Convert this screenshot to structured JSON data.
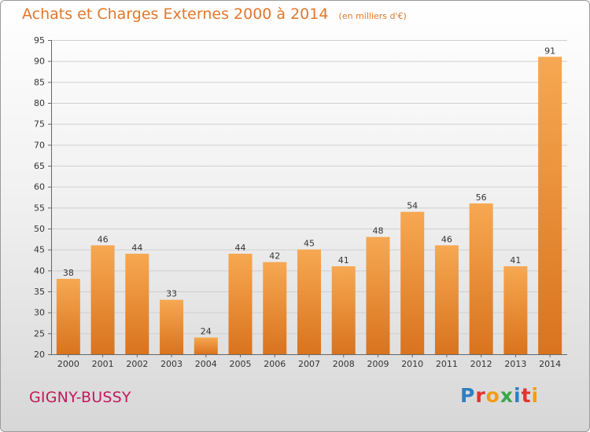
{
  "title": "Achats et Charges Externes 2000 à 2014",
  "unit_note": "(en milliers d'€)",
  "town": "GIGNY-BUSSY",
  "logo": "Proxiti",
  "colors": {
    "title": "#e2772a",
    "town": "#c2185b",
    "bar_light": "#f7a852",
    "bar_dark": "#d9731e",
    "logo_letters": [
      "#2f7fc1",
      "#e0342e",
      "#f39c12",
      "#3aa64a",
      "#2f7fc1",
      "#e0342e",
      "#f39c12"
    ]
  },
  "chart_data": {
    "type": "bar",
    "title": "Achats et Charges Externes 2000 à 2014",
    "xlabel": "",
    "ylabel": "",
    "categories": [
      "2000",
      "2001",
      "2002",
      "2003",
      "2004",
      "2005",
      "2006",
      "2007",
      "2008",
      "2009",
      "2010",
      "2011",
      "2012",
      "2013",
      "2014"
    ],
    "values": [
      38,
      46,
      44,
      33,
      24,
      44,
      42,
      45,
      41,
      48,
      54,
      46,
      56,
      41,
      91
    ],
    "ylim": [
      20,
      95
    ],
    "yticks": [
      20,
      25,
      30,
      35,
      40,
      45,
      50,
      55,
      60,
      65,
      70,
      75,
      80,
      85,
      90,
      95
    ],
    "grid": true
  }
}
